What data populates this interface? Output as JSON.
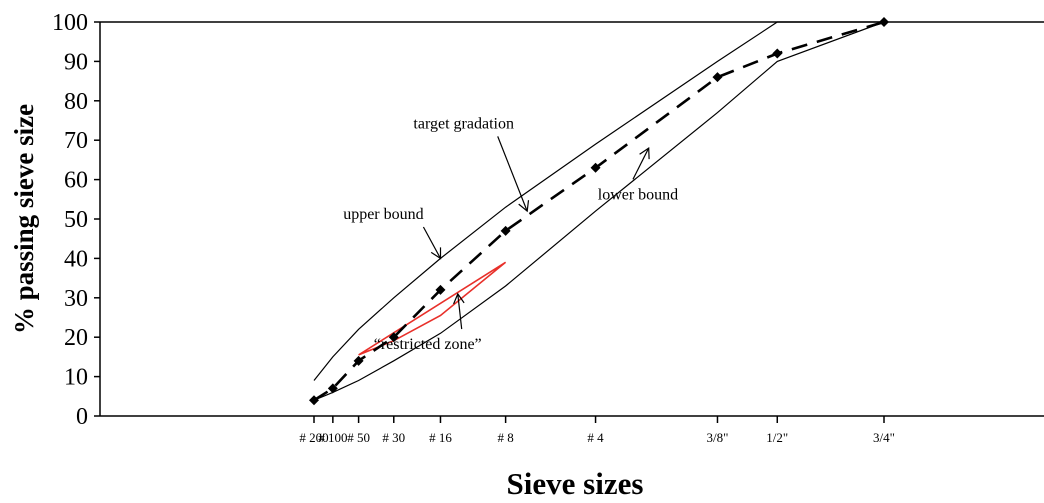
{
  "chart_data": {
    "type": "line",
    "xlabel": "Sieve sizes",
    "ylabel": "% passing sieve size",
    "ylim": [
      0,
      100
    ],
    "yticks": [
      0,
      10,
      20,
      30,
      40,
      50,
      60,
      70,
      80,
      90,
      100
    ],
    "x_scale": "sieve size raised to 0.45 power",
    "x_ticks": [
      {
        "label": "# 200",
        "size_mm": 0.075
      },
      {
        "label": "# 100",
        "size_mm": 0.15
      },
      {
        "label": "# 50",
        "size_mm": 0.3
      },
      {
        "label": "# 30",
        "size_mm": 0.6
      },
      {
        "label": "# 16",
        "size_mm": 1.18
      },
      {
        "label": "# 8",
        "size_mm": 2.36
      },
      {
        "label": "# 4",
        "size_mm": 4.75
      },
      {
        "label": "3/8\"",
        "size_mm": 9.5
      },
      {
        "label": "1/2\"",
        "size_mm": 12.5
      },
      {
        "label": "3/4\"",
        "size_mm": 19.0
      }
    ],
    "series": [
      {
        "key": "upper",
        "style": "thin-solid",
        "color": "#000000",
        "points": [
          [
            0.075,
            9
          ],
          [
            0.15,
            15
          ],
          [
            0.3,
            22
          ],
          [
            0.6,
            30
          ],
          [
            1.18,
            40
          ],
          [
            2.36,
            53
          ],
          [
            4.75,
            69
          ],
          [
            9.5,
            90
          ],
          [
            12.5,
            100
          ],
          [
            19.0,
            100
          ]
        ]
      },
      {
        "key": "lower",
        "style": "thin-solid",
        "color": "#000000",
        "points": [
          [
            0.075,
            4
          ],
          [
            0.15,
            6
          ],
          [
            0.3,
            9
          ],
          [
            0.6,
            14
          ],
          [
            1.18,
            21
          ],
          [
            2.36,
            33
          ],
          [
            4.75,
            52
          ],
          [
            9.5,
            77
          ],
          [
            12.5,
            90
          ],
          [
            19.0,
            100
          ]
        ]
      },
      {
        "key": "target",
        "style": "dashed-with-markers",
        "color": "#000000",
        "points": [
          [
            0.075,
            4
          ],
          [
            0.15,
            7
          ],
          [
            0.3,
            14
          ],
          [
            0.6,
            20
          ],
          [
            1.18,
            32
          ],
          [
            2.36,
            47
          ],
          [
            4.75,
            63
          ],
          [
            9.5,
            86
          ],
          [
            12.5,
            92
          ],
          [
            19.0,
            100
          ]
        ]
      }
    ],
    "restricted_zone": {
      "color": "#e8302a",
      "points": [
        [
          0.3,
          15.5
        ],
        [
          2.36,
          39
        ],
        [
          1.18,
          25.5
        ],
        [
          0.6,
          19.1
        ],
        [
          0.3,
          15.5
        ]
      ]
    },
    "annotations": [
      {
        "key": "target",
        "text": "target gradation",
        "at": [
          2.85,
          52
        ],
        "text_at": [
          1.55,
          73
        ]
      },
      {
        "key": "upper",
        "text": "upper bound",
        "at": [
          1.18,
          40
        ],
        "text_at": [
          0.5,
          50
        ]
      },
      {
        "key": "lower",
        "text": "lower bound",
        "at": [
          6.6,
          68
        ],
        "text_at": [
          6.2,
          55
        ]
      },
      {
        "key": "restricted",
        "text": "“restricted zone”",
        "at": [
          1.45,
          31
        ],
        "text_at": [
          1.0,
          17
        ]
      }
    ]
  }
}
